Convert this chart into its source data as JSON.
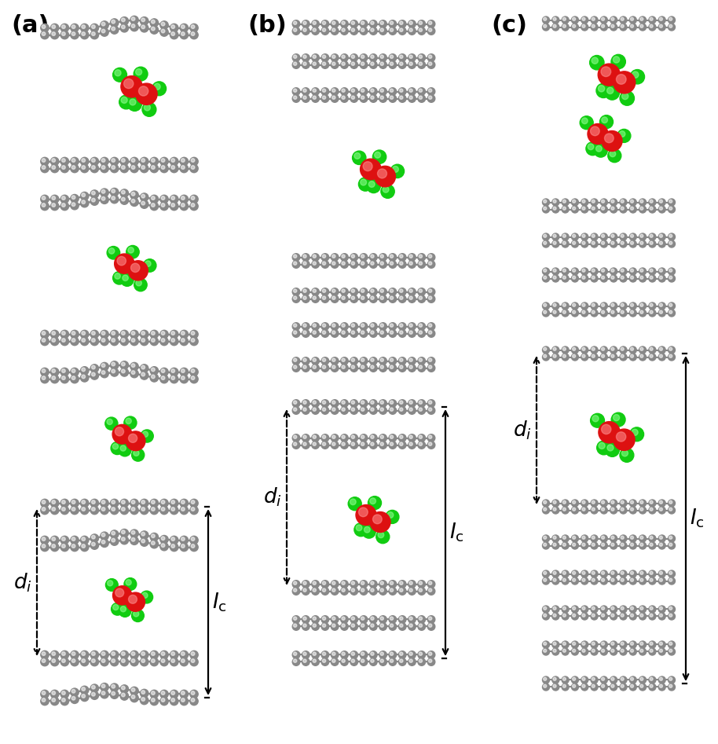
{
  "bg_color": "#ffffff",
  "graphene_color": "#888888",
  "graphene_light": "#cccccc",
  "al_color": "#dd1111",
  "al_light": "#ff6666",
  "cl_color": "#11cc11",
  "cl_light": "#88ff88",
  "bond_al_color": "#cc2222",
  "bond_cl_color": "#229922",
  "panel_labels": [
    "(a)",
    "(b)",
    "(c)"
  ],
  "label_fontsize": 22,
  "annot_fontsize": 19
}
